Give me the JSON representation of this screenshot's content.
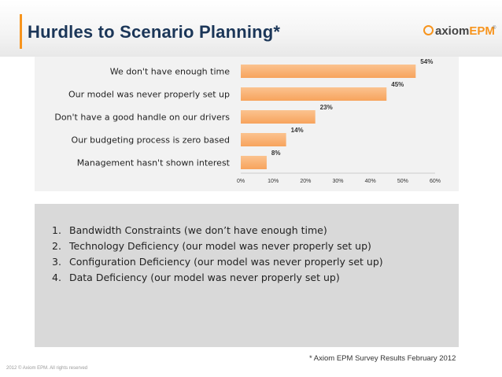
{
  "slide": {
    "title": "Hurdles to Scenario Planning*",
    "logo": {
      "axiom": "axiom",
      "epm": "EPM",
      "trademark": "®"
    },
    "source_note": "* Axiom EPM Survey Results February 2012",
    "footer": "2012 © Axiom EPM. All rights reserved"
  },
  "list": {
    "items": [
      {
        "num": "1.",
        "text": "Bandwidth Constraints (we don’t have enough time)"
      },
      {
        "num": "2.",
        "text": "Technology Deficiency (our model was never properly set up)"
      },
      {
        "num": "3.",
        "text": "Configuration Deficiency (our model was never properly set up)"
      },
      {
        "num": "4.",
        "text": "Data Deficiency (our model was never properly set up)"
      }
    ]
  },
  "colors": {
    "bar_fill": "#f7a35c",
    "bar_fill_light": "#fbc38f",
    "title": "#1b3658",
    "accent": "#f7941d"
  },
  "chart_data": {
    "type": "bar",
    "orientation": "horizontal",
    "categories": [
      "We don't have enough time",
      "Our model was never properly set up",
      "Don't have a good handle on our drivers",
      "Our budgeting process is zero based",
      "Management hasn't shown interest"
    ],
    "values": [
      54,
      45,
      23,
      14,
      8
    ],
    "data_labels": [
      "54%",
      "45%",
      "23%",
      "14%",
      "8%"
    ],
    "xlim": [
      0,
      60
    ],
    "xticks": [
      "0%",
      "10%",
      "20%",
      "30%",
      "40%",
      "50%",
      "60%"
    ],
    "grid": false,
    "legend": "none"
  }
}
